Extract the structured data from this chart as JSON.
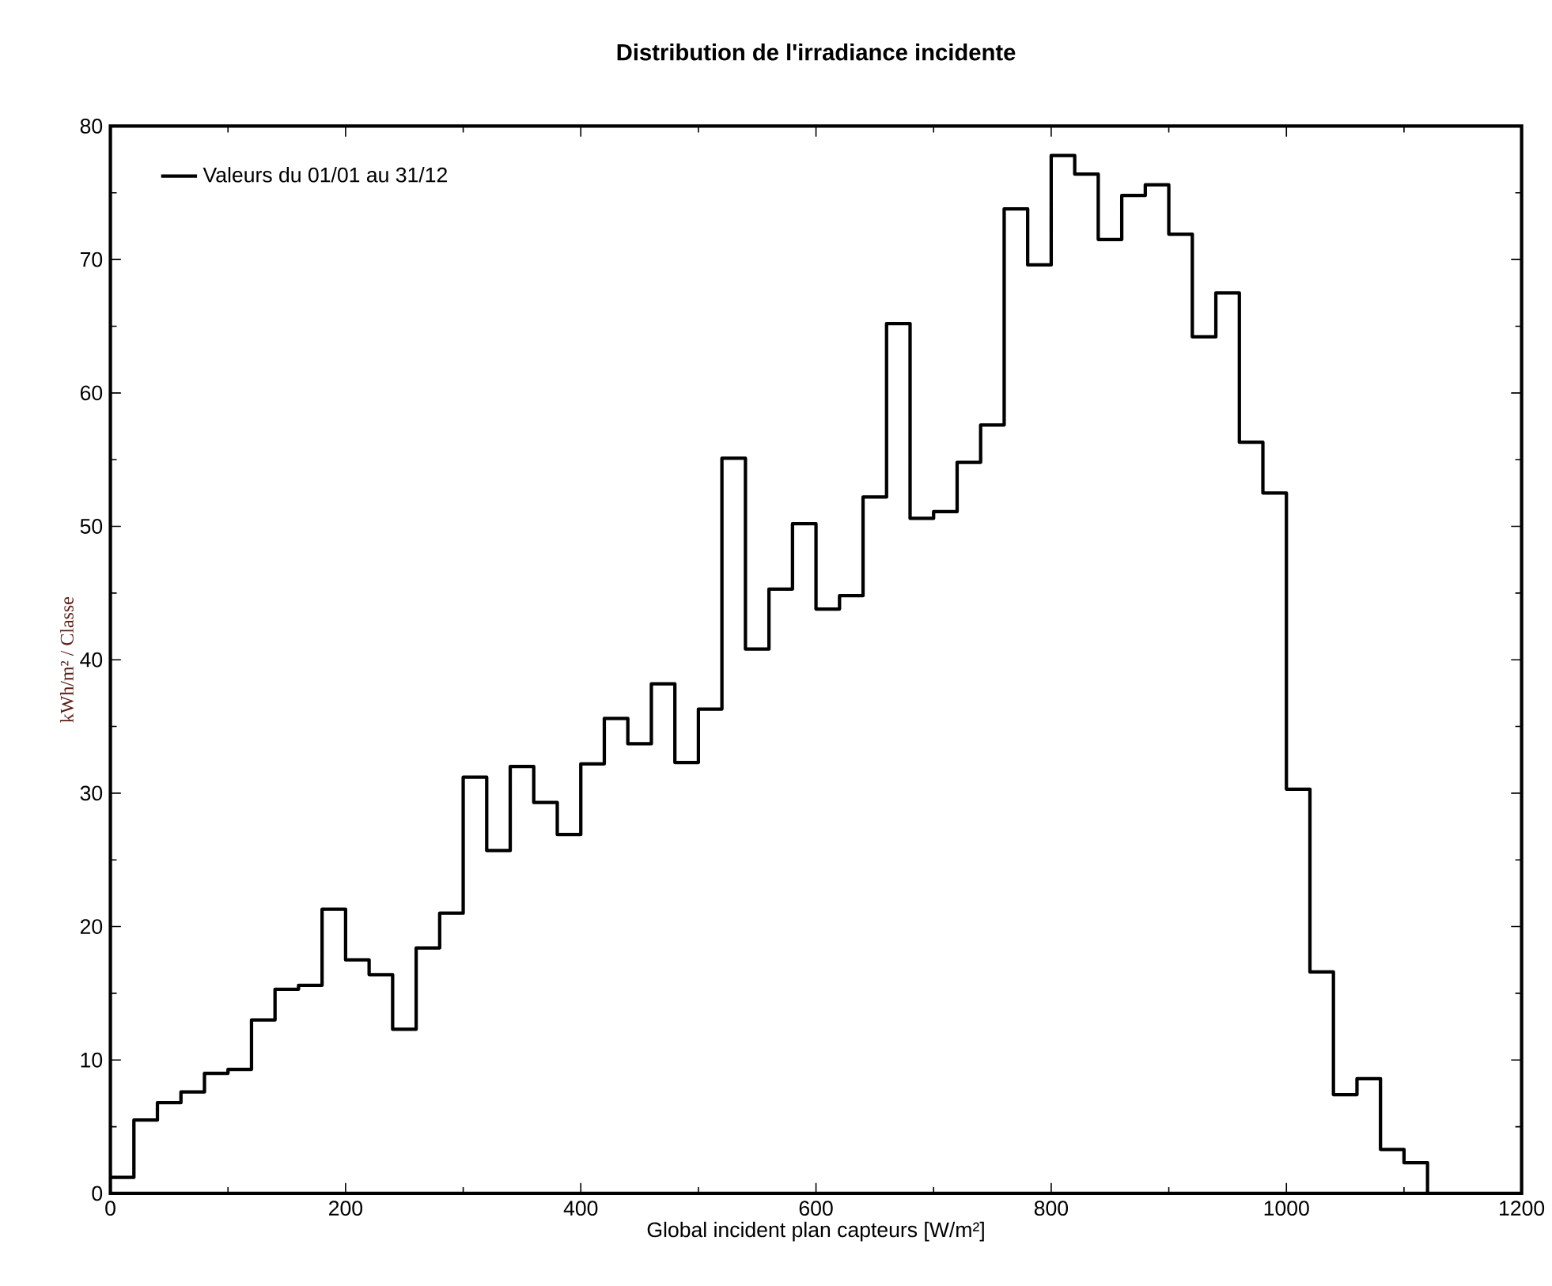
{
  "chart_data": {
    "type": "histogram",
    "title": "Distribution de l'irradiance incidente",
    "xlabel": "Global incident plan capteurs [W/m²]",
    "ylabel": "kWh/m² / Classe",
    "bins": [
      0,
      20,
      40,
      60,
      80,
      100,
      120,
      140,
      160,
      180,
      200,
      220,
      240,
      260,
      280,
      300,
      320,
      340,
      360,
      380,
      400,
      420,
      440,
      460,
      480,
      500,
      520,
      540,
      560,
      580,
      600,
      620,
      640,
      660,
      680,
      700,
      720,
      740,
      760,
      780,
      800,
      820,
      840,
      860,
      880,
      900,
      920,
      940,
      960,
      980,
      1000,
      1020,
      1040,
      1060,
      1080,
      1100,
      1120
    ],
    "series": [
      {
        "name": "Valeurs du 01/01 au 31/12",
        "color": "#000000",
        "values": [
          1.2,
          5.5,
          6.8,
          7.6,
          9.0,
          9.3,
          13.0,
          15.3,
          15.6,
          21.3,
          17.5,
          16.4,
          12.3,
          18.4,
          21.0,
          31.2,
          25.7,
          32.0,
          29.3,
          26.9,
          32.2,
          35.6,
          33.7,
          38.2,
          32.3,
          36.3,
          55.1,
          40.8,
          45.3,
          50.2,
          43.8,
          44.8,
          52.2,
          65.2,
          50.6,
          51.1,
          54.8,
          57.6,
          73.8,
          69.6,
          77.8,
          76.4,
          71.5,
          74.8,
          75.6,
          71.9,
          64.2,
          67.5,
          56.3,
          52.5,
          30.3,
          16.6,
          7.4,
          8.6,
          3.3,
          2.3
        ]
      }
    ],
    "xlim": [
      0,
      1200
    ],
    "xticks": [
      0,
      200,
      400,
      600,
      800,
      1000,
      1200
    ],
    "ylim": [
      0,
      80
    ],
    "yticks": [
      0,
      10,
      20,
      30,
      40,
      50,
      60,
      70,
      80
    ],
    "grid": false,
    "legend": "top left"
  }
}
